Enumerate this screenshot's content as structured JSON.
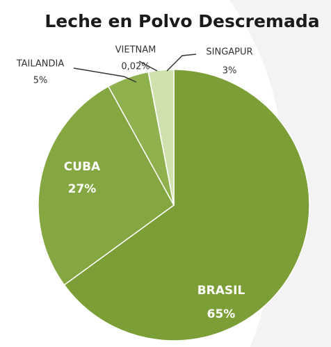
{
  "chart_data": {
    "type": "pie",
    "title": "Leche en Polvo Descremada",
    "categories": [
      "BRASIL",
      "CUBA",
      "TAILANDIA",
      "VIETNAM",
      "SINGAPUR"
    ],
    "values": [
      65,
      27,
      5,
      0.02,
      3
    ],
    "value_labels": [
      "65%",
      "27%",
      "5%",
      "0,02%",
      "3%"
    ],
    "colors": [
      "#7b9f36",
      "#84a741",
      "#8fb14d",
      "#b3cd85",
      "#cfe2ad"
    ]
  }
}
